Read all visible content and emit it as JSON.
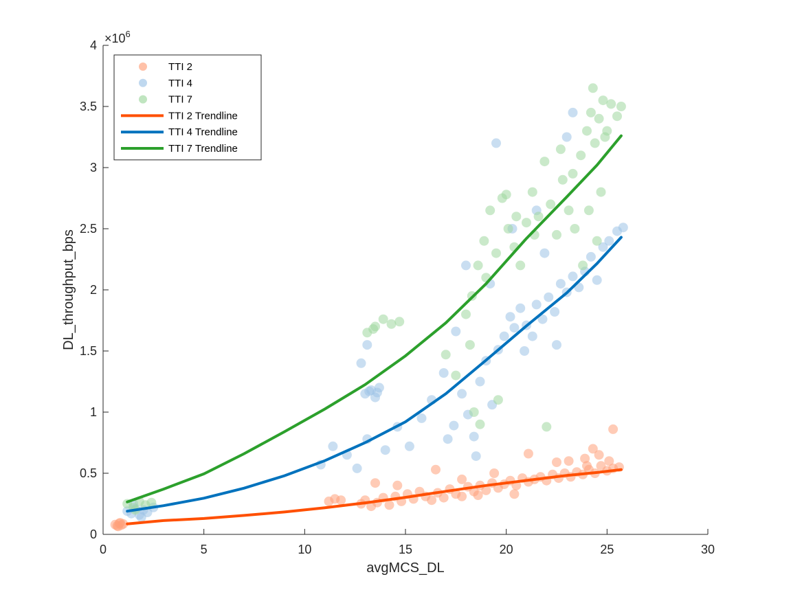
{
  "chart_data": {
    "type": "scatter",
    "xlabel": "avgMCS_DL",
    "ylabel": "DL_throughput_bps",
    "xlim": [
      0,
      30
    ],
    "ylim": [
      0,
      4000000
    ],
    "x_ticks": [
      0,
      5,
      10,
      15,
      20,
      25,
      30
    ],
    "x_tick_labels": [
      "0",
      "5",
      "10",
      "15",
      "20",
      "25",
      "30"
    ],
    "y_ticks": [
      0,
      500000,
      1000000,
      1500000,
      2000000,
      2500000,
      3000000,
      3500000,
      4000000
    ],
    "y_tick_labels": [
      "0",
      "0.5",
      "1",
      "1.5",
      "2",
      "2.5",
      "3",
      "3.5",
      "4"
    ],
    "y_exponent_label": "×10",
    "y_exponent_power": "6",
    "grid": false,
    "legend_position": "top-left",
    "colors": {
      "tti2": "#FF4F00",
      "tti4": "#0072BD",
      "tti7": "#2CA02C",
      "tti2_scatter": "#FFA07A",
      "tti4_scatter": "#9DC3E6",
      "tti7_scatter": "#9ED79E"
    },
    "legend": [
      {
        "label": "TTI 2",
        "kind": "marker",
        "color": "#FFA07A"
      },
      {
        "label": "TTI 4",
        "kind": "marker",
        "color": "#9DC3E6"
      },
      {
        "label": "TTI 7",
        "kind": "marker",
        "color": "#9ED79E"
      },
      {
        "label": "TTI 2 Trendline",
        "kind": "line",
        "color": "#FF4F00"
      },
      {
        "label": "TTI 4 Trendline",
        "kind": "line",
        "color": "#0072BD"
      },
      {
        "label": "TTI 7 Trendline",
        "kind": "line",
        "color": "#2CA02C"
      }
    ],
    "series": [
      {
        "name": "TTI 2",
        "kind": "scatter",
        "color": "#FFA07A",
        "points": [
          [
            0.6,
            80000
          ],
          [
            0.7,
            70000
          ],
          [
            0.8,
            90000
          ],
          [
            0.9,
            75000
          ],
          [
            1.0,
            85000
          ],
          [
            0.75,
            65000
          ],
          [
            0.85,
            95000
          ],
          [
            11.2,
            270000
          ],
          [
            11.5,
            290000
          ],
          [
            11.8,
            280000
          ],
          [
            12.8,
            250000
          ],
          [
            13.0,
            280000
          ],
          [
            13.3,
            230000
          ],
          [
            13.6,
            260000
          ],
          [
            13.9,
            300000
          ],
          [
            14.2,
            240000
          ],
          [
            14.5,
            310000
          ],
          [
            14.8,
            270000
          ],
          [
            15.1,
            330000
          ],
          [
            15.4,
            290000
          ],
          [
            15.7,
            350000
          ],
          [
            16.0,
            310000
          ],
          [
            16.3,
            280000
          ],
          [
            16.6,
            340000
          ],
          [
            16.9,
            300000
          ],
          [
            17.2,
            370000
          ],
          [
            17.5,
            330000
          ],
          [
            17.8,
            310000
          ],
          [
            18.1,
            390000
          ],
          [
            18.4,
            350000
          ],
          [
            18.7,
            400000
          ],
          [
            19.0,
            360000
          ],
          [
            19.3,
            420000
          ],
          [
            19.6,
            380000
          ],
          [
            19.9,
            410000
          ],
          [
            20.2,
            440000
          ],
          [
            20.5,
            400000
          ],
          [
            20.8,
            460000
          ],
          [
            21.1,
            430000
          ],
          [
            21.4,
            450000
          ],
          [
            21.7,
            470000
          ],
          [
            22.0,
            440000
          ],
          [
            22.3,
            490000
          ],
          [
            22.6,
            460000
          ],
          [
            22.9,
            500000
          ],
          [
            23.2,
            470000
          ],
          [
            23.5,
            510000
          ],
          [
            23.8,
            490000
          ],
          [
            24.1,
            530000
          ],
          [
            24.4,
            500000
          ],
          [
            24.7,
            560000
          ],
          [
            25.0,
            520000
          ],
          [
            25.3,
            540000
          ],
          [
            25.6,
            550000
          ],
          [
            24.3,
            700000
          ],
          [
            24.6,
            650000
          ],
          [
            25.3,
            860000
          ],
          [
            23.9,
            620000
          ],
          [
            13.5,
            420000
          ],
          [
            14.6,
            400000
          ],
          [
            16.5,
            530000
          ],
          [
            17.8,
            450000
          ],
          [
            21.1,
            660000
          ],
          [
            22.5,
            590000
          ],
          [
            19.4,
            500000
          ],
          [
            20.4,
            330000
          ],
          [
            18.6,
            320000
          ],
          [
            23.1,
            600000
          ],
          [
            24.0,
            560000
          ],
          [
            25.1,
            600000
          ]
        ]
      },
      {
        "name": "TTI 4",
        "kind": "scatter",
        "color": "#9DC3E6",
        "points": [
          [
            1.2,
            190000
          ],
          [
            1.4,
            170000
          ],
          [
            1.6,
            210000
          ],
          [
            1.8,
            160000
          ],
          [
            2.0,
            200000
          ],
          [
            2.2,
            180000
          ],
          [
            2.5,
            220000
          ],
          [
            1.5,
            250000
          ],
          [
            1.9,
            140000
          ],
          [
            13.0,
            1150000
          ],
          [
            13.3,
            1180000
          ],
          [
            13.5,
            1120000
          ],
          [
            13.7,
            1200000
          ],
          [
            13.2,
            1170000
          ],
          [
            13.6,
            1160000
          ],
          [
            10.8,
            570000
          ],
          [
            11.4,
            720000
          ],
          [
            12.1,
            650000
          ],
          [
            12.6,
            540000
          ],
          [
            13.1,
            780000
          ],
          [
            14.0,
            690000
          ],
          [
            14.6,
            880000
          ],
          [
            15.2,
            720000
          ],
          [
            15.8,
            950000
          ],
          [
            16.3,
            1100000
          ],
          [
            16.9,
            1320000
          ],
          [
            17.4,
            890000
          ],
          [
            17.8,
            1150000
          ],
          [
            18.1,
            980000
          ],
          [
            18.4,
            800000
          ],
          [
            18.7,
            1250000
          ],
          [
            19.0,
            1420000
          ],
          [
            19.3,
            1060000
          ],
          [
            19.6,
            1510000
          ],
          [
            19.9,
            1620000
          ],
          [
            20.2,
            1780000
          ],
          [
            20.4,
            1690000
          ],
          [
            20.7,
            1850000
          ],
          [
            21.0,
            1710000
          ],
          [
            21.3,
            1620000
          ],
          [
            21.5,
            1880000
          ],
          [
            21.8,
            1760000
          ],
          [
            22.1,
            1940000
          ],
          [
            22.4,
            1820000
          ],
          [
            22.7,
            2050000
          ],
          [
            23.0,
            1980000
          ],
          [
            23.3,
            2110000
          ],
          [
            23.6,
            2020000
          ],
          [
            23.9,
            2150000
          ],
          [
            24.2,
            2270000
          ],
          [
            24.5,
            2080000
          ],
          [
            24.8,
            2350000
          ],
          [
            25.1,
            2400000
          ],
          [
            25.5,
            2480000
          ],
          [
            25.8,
            2510000
          ],
          [
            18.0,
            2200000
          ],
          [
            17.5,
            1660000
          ],
          [
            19.2,
            2050000
          ],
          [
            19.5,
            3200000
          ],
          [
            23.3,
            3450000
          ],
          [
            23.0,
            3250000
          ],
          [
            21.5,
            2650000
          ],
          [
            20.3,
            2500000
          ],
          [
            18.5,
            640000
          ],
          [
            17.1,
            780000
          ],
          [
            13.1,
            1550000
          ],
          [
            12.8,
            1400000
          ],
          [
            22.5,
            1550000
          ],
          [
            21.9,
            2300000
          ],
          [
            20.9,
            1500000
          ]
        ]
      },
      {
        "name": "TTI 7",
        "kind": "scatter",
        "color": "#9ED79E",
        "points": [
          [
            1.2,
            250000
          ],
          [
            1.5,
            220000
          ],
          [
            1.8,
            270000
          ],
          [
            2.1,
            240000
          ],
          [
            2.4,
            260000
          ],
          [
            1.6,
            200000
          ],
          [
            13.1,
            1650000
          ],
          [
            13.5,
            1700000
          ],
          [
            13.9,
            1760000
          ],
          [
            14.3,
            1720000
          ],
          [
            14.7,
            1740000
          ],
          [
            13.4,
            1680000
          ],
          [
            17.0,
            1470000
          ],
          [
            17.5,
            1300000
          ],
          [
            18.0,
            1800000
          ],
          [
            18.3,
            1950000
          ],
          [
            18.6,
            2200000
          ],
          [
            18.9,
            2400000
          ],
          [
            19.2,
            2650000
          ],
          [
            19.5,
            2300000
          ],
          [
            19.8,
            2750000
          ],
          [
            20.1,
            2500000
          ],
          [
            20.4,
            2350000
          ],
          [
            20.7,
            2200000
          ],
          [
            21.0,
            2550000
          ],
          [
            21.3,
            2800000
          ],
          [
            21.6,
            2600000
          ],
          [
            21.9,
            3050000
          ],
          [
            22.2,
            2700000
          ],
          [
            22.5,
            2450000
          ],
          [
            22.8,
            2900000
          ],
          [
            23.1,
            2650000
          ],
          [
            23.4,
            2500000
          ],
          [
            23.7,
            3100000
          ],
          [
            24.0,
            3300000
          ],
          [
            24.2,
            3450000
          ],
          [
            24.4,
            3200000
          ],
          [
            24.6,
            3400000
          ],
          [
            24.8,
            3550000
          ],
          [
            25.0,
            3300000
          ],
          [
            25.2,
            3520000
          ],
          [
            25.5,
            3420000
          ],
          [
            25.7,
            3500000
          ],
          [
            24.3,
            3650000
          ],
          [
            24.1,
            2650000
          ],
          [
            24.5,
            2400000
          ],
          [
            23.8,
            2200000
          ],
          [
            24.7,
            2800000
          ],
          [
            18.2,
            1550000
          ],
          [
            19.0,
            2100000
          ],
          [
            20.5,
            2600000
          ],
          [
            22.0,
            880000
          ],
          [
            18.4,
            1000000
          ],
          [
            18.7,
            900000
          ],
          [
            19.6,
            1100000
          ],
          [
            20.0,
            2780000
          ],
          [
            21.4,
            2450000
          ],
          [
            22.7,
            3150000
          ],
          [
            23.3,
            2950000
          ],
          [
            24.9,
            3250000
          ]
        ]
      },
      {
        "name": "TTI 2 Trendline",
        "kind": "line",
        "color": "#FF4F00",
        "points": [
          [
            1.2,
            86000
          ],
          [
            3,
            113000
          ],
          [
            5,
            130000
          ],
          [
            7,
            155000
          ],
          [
            9,
            183000
          ],
          [
            11,
            218000
          ],
          [
            13,
            258000
          ],
          [
            15,
            303000
          ],
          [
            17,
            352000
          ],
          [
            19,
            400000
          ],
          [
            21,
            441000
          ],
          [
            23,
            482000
          ],
          [
            24.5,
            506000
          ],
          [
            25.7,
            530000
          ]
        ]
      },
      {
        "name": "TTI 4 Trendline",
        "kind": "line",
        "color": "#0072BD",
        "points": [
          [
            1.2,
            190000
          ],
          [
            3,
            235000
          ],
          [
            5,
            296000
          ],
          [
            7,
            378000
          ],
          [
            9,
            480000
          ],
          [
            11,
            603000
          ],
          [
            13,
            750000
          ],
          [
            15,
            920000
          ],
          [
            17,
            1150000
          ],
          [
            19,
            1425000
          ],
          [
            21,
            1705000
          ],
          [
            23,
            1975000
          ],
          [
            24.5,
            2215000
          ],
          [
            25.7,
            2430000
          ]
        ]
      },
      {
        "name": "TTI 7 Trendline",
        "kind": "line",
        "color": "#2CA02C",
        "points": [
          [
            1.2,
            265000
          ],
          [
            3,
            370000
          ],
          [
            5,
            495000
          ],
          [
            7,
            660000
          ],
          [
            9,
            840000
          ],
          [
            11,
            1025000
          ],
          [
            13,
            1225000
          ],
          [
            15,
            1460000
          ],
          [
            17,
            1730000
          ],
          [
            19,
            2050000
          ],
          [
            21,
            2420000
          ],
          [
            23,
            2760000
          ],
          [
            24.5,
            3020000
          ],
          [
            25.7,
            3260000
          ]
        ]
      }
    ]
  }
}
